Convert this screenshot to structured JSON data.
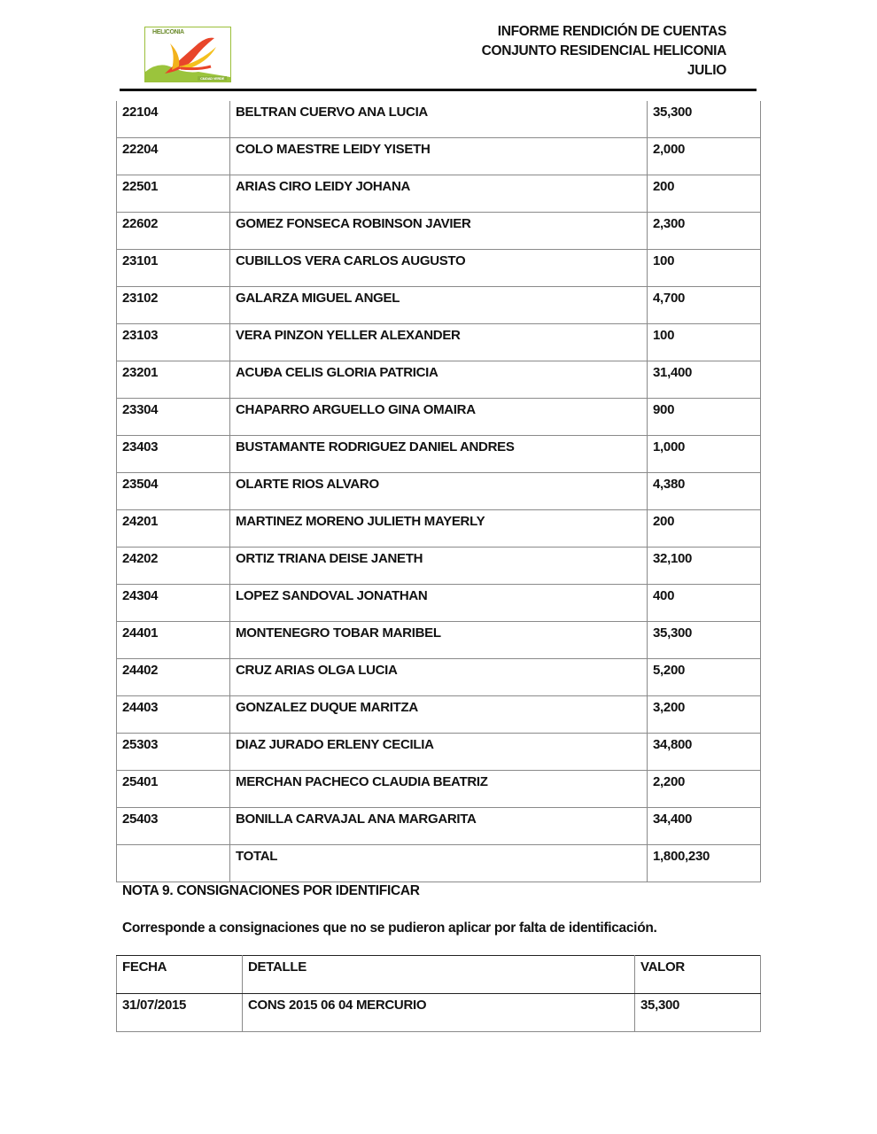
{
  "header": {
    "logo_text": "HELICONIA",
    "logo_subtext": "CIUDAD VERDE",
    "lines": [
      "INFORME RENDICIÓN DE CUENTAS",
      "CONJUNTO RESIDENCIAL HELICONIA",
      "JULIO"
    ]
  },
  "table1": {
    "rows": [
      [
        "22104",
        "BELTRAN CUERVO ANA LUCIA",
        "35,300"
      ],
      [
        "22204",
        "COLO MAESTRE LEIDY YISETH",
        "2,000"
      ],
      [
        "22501",
        "ARIAS CIRO LEIDY JOHANA",
        "200"
      ],
      [
        "22602",
        "GOMEZ  FONSECA  ROBINSON JAVIER",
        "2,300"
      ],
      [
        "23101",
        "CUBILLOS VERA CARLOS AUGUSTO",
        "100"
      ],
      [
        "23102",
        "GALARZA  MIGUEL ANGEL",
        "4,700"
      ],
      [
        "23103",
        "VERA PINZON YELLER ALEXANDER",
        "100"
      ],
      [
        "23201",
        "ACUÐA  CELIS  GLORIA  PATRICIA",
        "31,400"
      ],
      [
        "23304",
        "CHAPARRO ARGUELLO GINA OMAIRA",
        "900"
      ],
      [
        "23403",
        "BUSTAMANTE RODRIGUEZ DANIEL ANDRES",
        "1,000"
      ],
      [
        "23504",
        "OLARTE RIOS ALVARO",
        "4,380"
      ],
      [
        "24201",
        "MARTINEZ MORENO JULIETH MAYERLY",
        "200"
      ],
      [
        "24202",
        "ORTIZ TRIANA DEISE JANETH",
        "32,100"
      ],
      [
        "24304",
        "LOPEZ SANDOVAL JONATHAN",
        "400"
      ],
      [
        "24401",
        "MONTENEGRO TOBAR MARIBEL",
        "35,300"
      ],
      [
        "24402",
        "CRUZ ARIAS OLGA LUCIA",
        "5,200"
      ],
      [
        "24403",
        "GONZALEZ DUQUE MARITZA",
        "3,200"
      ],
      [
        "25303",
        "DIAZ JURADO ERLENY CECILIA",
        "34,800"
      ],
      [
        "25401",
        "MERCHAN PACHECO CLAUDIA BEATRIZ",
        "2,200"
      ],
      [
        "25403",
        "BONILLA CARVAJAL ANA MARGARITA",
        "34,400"
      ],
      [
        "",
        "TOTAL",
        "1,800,230"
      ]
    ]
  },
  "note": {
    "title": "NOTA 9.  CONSIGNACIONES POR IDENTIFICAR",
    "text": "Corresponde a consignaciones que no se pudieron aplicar por falta de identificación."
  },
  "table2": {
    "headers": [
      "FECHA",
      "DETALLE",
      "VALOR"
    ],
    "rows": [
      [
        "31/07/2015",
        "CONS 2015 06 04 MERCURIO",
        "35,300"
      ]
    ]
  }
}
